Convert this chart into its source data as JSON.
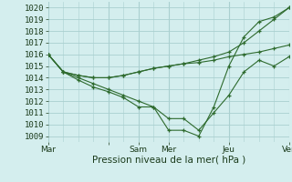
{
  "background_color": "#d4eeee",
  "grid_color": "#aad0d0",
  "line_color": "#2d6a2d",
  "xlabel": "Pression niveau de la mer( hPa )",
  "xlim": [
    0,
    96
  ],
  "ylim": [
    1008.5,
    1020.5
  ],
  "yticks": [
    1009,
    1010,
    1011,
    1012,
    1013,
    1014,
    1015,
    1016,
    1017,
    1018,
    1019,
    1020
  ],
  "xtick_positions": [
    0,
    24,
    36,
    48,
    72,
    96
  ],
  "xtick_labels": [
    "Mar",
    "",
    "Sam",
    "Mer",
    "Jeu",
    "Ven"
  ],
  "vlines": [
    0,
    24,
    36,
    48,
    72,
    96
  ],
  "title_color": "#1a3a1a",
  "axis_label_fontsize": 7.5,
  "tick_fontsize": 6.5,
  "series": [
    {
      "x": [
        0,
        6,
        12,
        18,
        24,
        30,
        36,
        42,
        48,
        54,
        60,
        66,
        72,
        78,
        84,
        90,
        96
      ],
      "y": [
        1016.0,
        1014.5,
        1014.2,
        1014.0,
        1014.0,
        1014.2,
        1014.5,
        1014.8,
        1015.0,
        1015.2,
        1015.3,
        1015.5,
        1015.8,
        1016.0,
        1016.2,
        1016.5,
        1016.8
      ]
    },
    {
      "x": [
        0,
        6,
        12,
        18,
        24,
        30,
        36,
        42,
        48,
        54,
        60,
        66,
        72,
        78,
        84,
        90,
        96
      ],
      "y": [
        1016.0,
        1014.5,
        1014.2,
        1014.0,
        1014.0,
        1014.2,
        1014.5,
        1014.8,
        1015.0,
        1015.2,
        1015.5,
        1015.8,
        1016.2,
        1017.0,
        1018.0,
        1019.0,
        1020.0
      ]
    },
    {
      "x": [
        0,
        6,
        12,
        18,
        24,
        30,
        36,
        42,
        48,
        54,
        60,
        66,
        72,
        78,
        84,
        90,
        96
      ],
      "y": [
        1016.0,
        1014.5,
        1014.0,
        1013.5,
        1013.0,
        1012.5,
        1012.0,
        1011.5,
        1010.5,
        1010.5,
        1009.5,
        1011.0,
        1012.5,
        1014.5,
        1015.5,
        1015.0,
        1015.8
      ]
    },
    {
      "x": [
        0,
        6,
        12,
        18,
        24,
        30,
        36,
        42,
        48,
        54,
        60,
        66,
        72,
        78,
        84,
        90,
        96
      ],
      "y": [
        1016.0,
        1014.5,
        1013.8,
        1013.2,
        1012.8,
        1012.3,
        1011.5,
        1011.5,
        1009.5,
        1009.5,
        1009.0,
        1011.5,
        1015.0,
        1017.5,
        1018.8,
        1019.2,
        1020.0
      ]
    }
  ]
}
